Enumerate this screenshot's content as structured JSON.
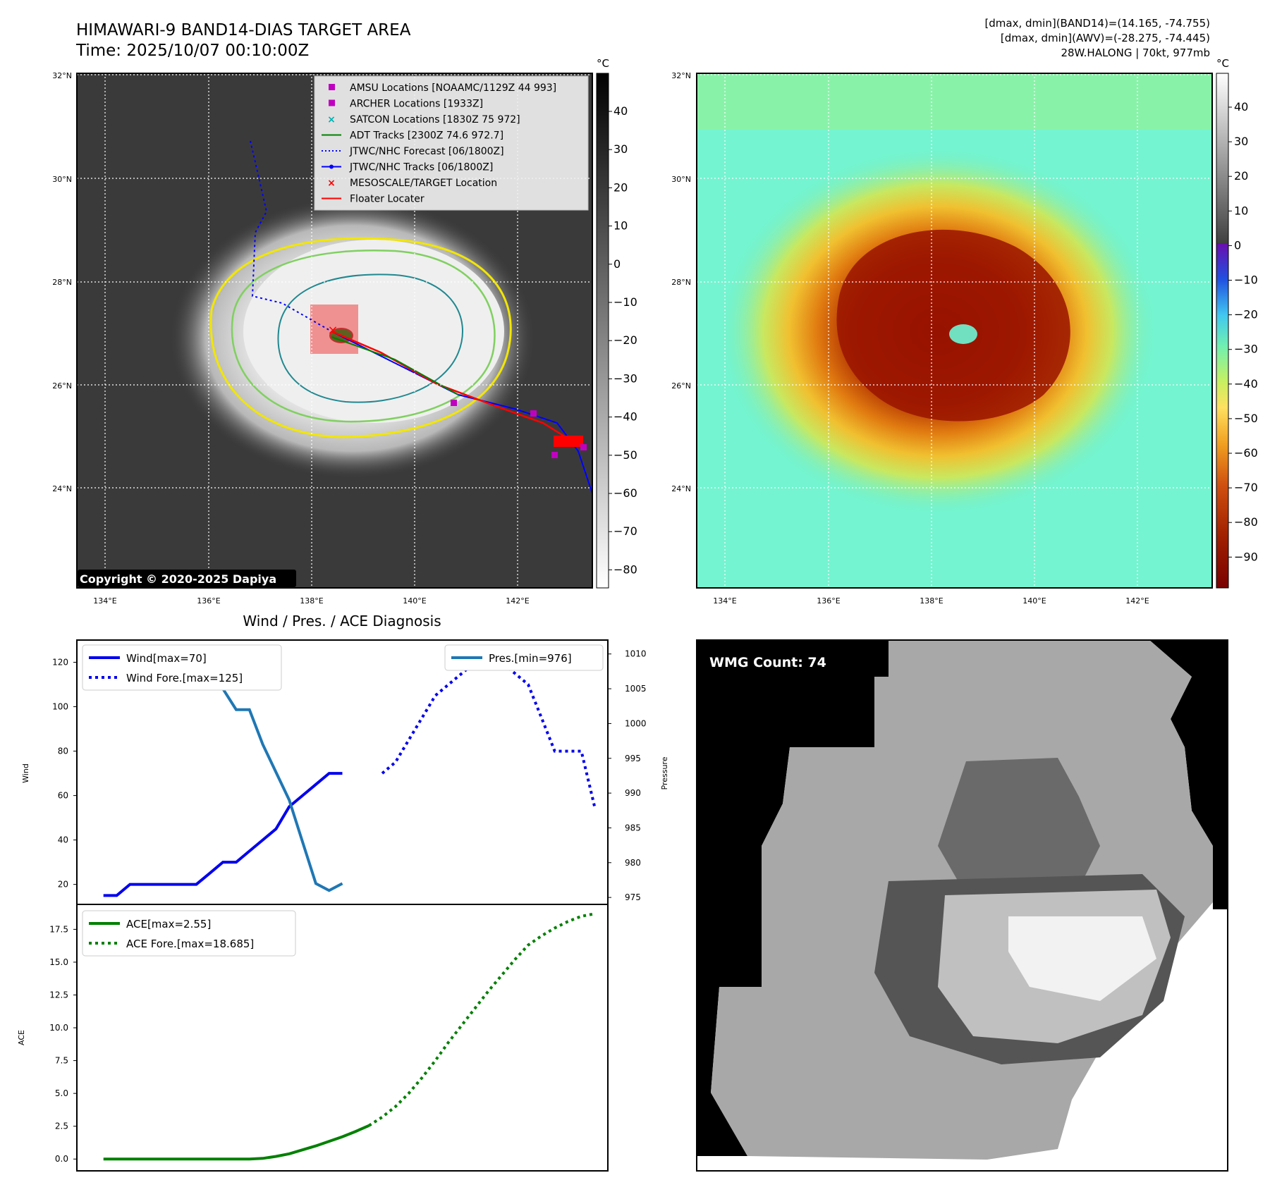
{
  "header": {
    "title_line1": "HIMAWARI-9 BAND14-DIAS TARGET AREA",
    "title_line2": "Time: 2025/10/07 00:10:00Z",
    "right_line1": "[dmax, dmin](BAND14)=(14.165, -74.755)",
    "right_line2": "[dmax, dmin](AWV)=(-28.275, -74.445)",
    "right_line3": "28W.HALONG | 70kt, 977mb"
  },
  "ir_panel": {
    "copyright": "Copyright © 2020-2025 Dapiya",
    "lat_labels": [
      "32°N",
      "30°N",
      "28°N",
      "26°N",
      "24°N"
    ],
    "lon_labels": [
      "134°E",
      "136°E",
      "138°E",
      "140°E",
      "142°E"
    ],
    "colorbar_unit": "°C",
    "colorbar_ticks": [
      "40",
      "30",
      "20",
      "10",
      "0",
      "−10",
      "−20",
      "−30",
      "−40",
      "−50",
      "−60",
      "−70",
      "−80"
    ],
    "legend": [
      {
        "label": "AMSU Locations [NOAAMC/1129Z 44 993]",
        "marker": "square",
        "color": "#c000c0"
      },
      {
        "label": "ARCHER Locations [1933Z]",
        "marker": "square",
        "color": "#c000c0"
      },
      {
        "label": "SATCON Locations [1830Z 75 972]",
        "marker": "x",
        "color": "#00b0b0"
      },
      {
        "label": "ADT Tracks [2300Z 74.6 972.7]",
        "marker": "line",
        "color": "#008000"
      },
      {
        "label": "JTWC/NHC Forecast [06/1800Z]",
        "marker": "dotted",
        "color": "#0000ff"
      },
      {
        "label": "JTWC/NHC Tracks [06/1800Z]",
        "marker": "line-dot",
        "color": "#0000ff"
      },
      {
        "label": "MESOSCALE/TARGET Location",
        "marker": "x",
        "color": "#ff0000"
      },
      {
        "label": "Floater Locater",
        "marker": "line",
        "color": "#ff0000"
      }
    ]
  },
  "awv_panel": {
    "lat_labels": [
      "32°N",
      "30°N",
      "28°N",
      "26°N",
      "24°N"
    ],
    "lon_labels": [
      "134°E",
      "136°E",
      "138°E",
      "140°E",
      "142°E"
    ],
    "colorbar_unit": "°C",
    "colorbar_ticks": [
      "40",
      "30",
      "20",
      "10",
      "0",
      "−10",
      "−20",
      "−30",
      "−40",
      "−50",
      "−60",
      "−70",
      "−80",
      "−90"
    ]
  },
  "wmg_panel": {
    "label": "WMG Count: 74"
  },
  "colors": {
    "wind": "#0000ee",
    "pressure": "#1f77b4",
    "ace": "#008000"
  },
  "chart_data": [
    {
      "type": "line",
      "title": "Wind / Pres. / ACE Diagnosis",
      "ylabel": "Wind",
      "ylabel_right": "Pressure",
      "ylim": [
        11,
        130
      ],
      "ylim_right": [
        974,
        1012
      ],
      "xlim": [
        -2,
        38
      ],
      "yticks": [
        "20",
        "40",
        "60",
        "80",
        "100",
        "120"
      ],
      "yticks_right": [
        "975",
        "980",
        "985",
        "990",
        "995",
        "1000",
        "1005",
        "1010"
      ],
      "legend_left": [
        "Wind[max=70]",
        "Wind Fore.[max=125]"
      ],
      "legend_right": [
        "Pres.[min=976]"
      ],
      "series": [
        {
          "name": "Wind[max=70]",
          "style": "solid",
          "axis": "left",
          "x": [
            0,
            1,
            2,
            3,
            4,
            5,
            6,
            7,
            8,
            9,
            10,
            11,
            12,
            13,
            14,
            15,
            16,
            17,
            18,
            19,
            20
          ],
          "values": [
            15,
            15,
            20,
            20,
            20,
            20,
            20,
            20,
            25,
            30,
            30,
            35,
            40,
            45,
            55,
            60,
            65,
            70,
            70,
            null,
            null
          ]
        },
        {
          "name": "Wind Fore.[max=125]",
          "style": "dotted",
          "axis": "left",
          "x": [
            21,
            22,
            23,
            24,
            25,
            26,
            27,
            28,
            29,
            30,
            31,
            32,
            33,
            34,
            35,
            36,
            37
          ],
          "values": [
            70,
            75,
            85,
            95,
            105,
            110,
            115,
            120,
            125,
            120,
            115,
            110,
            95,
            80,
            80,
            80,
            55
          ]
        },
        {
          "name": "Pres.[min=976]",
          "style": "solid",
          "axis": "right",
          "x": [
            0,
            1,
            2,
            3,
            4,
            5,
            6,
            7,
            8,
            9,
            10,
            11,
            12,
            13,
            14,
            15,
            16,
            17,
            18
          ],
          "values": [
            1009,
            1009,
            1009,
            1010,
            1011,
            1011,
            1010,
            1008,
            1006,
            1005,
            1002,
            1002,
            997,
            993,
            989,
            983,
            977,
            976,
            977
          ]
        }
      ]
    },
    {
      "type": "line",
      "ylabel": "ACE",
      "ylim": [
        -0.9,
        19.4
      ],
      "xlim": [
        -2,
        38
      ],
      "yticks": [
        "0.0",
        "2.5",
        "5.0",
        "7.5",
        "10.0",
        "12.5",
        "15.0",
        "17.5"
      ],
      "legend": [
        "ACE[max=2.55]",
        "ACE Fore.[max=18.685]"
      ],
      "series": [
        {
          "name": "ACE[max=2.55]",
          "style": "solid",
          "x": [
            0,
            2,
            4,
            6,
            8,
            10,
            11,
            12,
            13,
            14,
            15,
            16,
            17,
            18,
            19,
            20
          ],
          "values": [
            0,
            0,
            0,
            0,
            0,
            0,
            0,
            0.05,
            0.2,
            0.4,
            0.7,
            1.0,
            1.35,
            1.7,
            2.1,
            2.55
          ]
        },
        {
          "name": "ACE Fore.[max=18.685]",
          "style": "dotted",
          "x": [
            20,
            21,
            22,
            23,
            24,
            25,
            26,
            27,
            28,
            29,
            30,
            31,
            32,
            33,
            34,
            35,
            36,
            37
          ],
          "values": [
            2.55,
            3.2,
            4.0,
            5.0,
            6.2,
            7.5,
            8.9,
            10.2,
            11.5,
            12.8,
            14.0,
            15.2,
            16.3,
            17.0,
            17.6,
            18.1,
            18.5,
            18.685
          ]
        }
      ]
    }
  ]
}
